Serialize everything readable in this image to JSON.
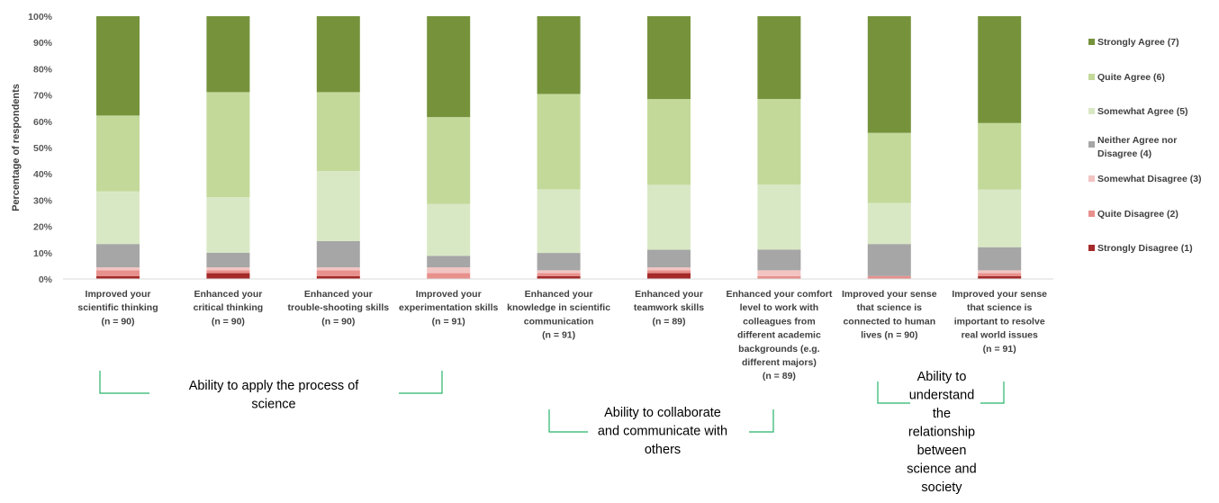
{
  "chart_data": {
    "type": "bar",
    "stacked": true,
    "percent": true,
    "ylabel": "Percentage of respondents",
    "ylim": [
      0,
      100
    ],
    "yticks": [
      "0%",
      "10%",
      "20%",
      "30%",
      "40%",
      "50%",
      "60%",
      "70%",
      "80%",
      "90%",
      "100%"
    ],
    "categories": [
      [
        "Improved your",
        "scientific thinking",
        "(n = 90)"
      ],
      [
        "Enhanced your",
        "critical thinking",
        "(n = 90)"
      ],
      [
        "Enhanced your",
        "trouble-shooting skills",
        "(n = 90)"
      ],
      [
        "Improved your",
        "experimentation skills",
        "(n = 91)"
      ],
      [
        "Enhanced your",
        "knowledge in scientific",
        "communication",
        "(n = 91)"
      ],
      [
        "Enhanced your",
        "teamwork skills",
        "(n = 89)"
      ],
      [
        "Enhanced your comfort",
        "level to work with",
        "colleagues from",
        "different academic",
        "backgrounds (e.g.",
        "different majors)",
        "(n = 89)"
      ],
      [
        "Improved your sense",
        "that science is",
        "connected to human",
        "lives (n = 90)"
      ],
      [
        "Improved your sense",
        "that science is",
        "important to resolve",
        "real world issues",
        "(n = 91)"
      ]
    ],
    "series": [
      {
        "name": "Strongly Disagree (1)",
        "color": "#a52a2a",
        "values": [
          1.1,
          2.2,
          1.1,
          0.0,
          1.1,
          2.2,
          0.0,
          0.0,
          1.1
        ]
      },
      {
        "name": "Quite Disagree (2)",
        "color": "#e8908c",
        "values": [
          2.2,
          1.1,
          2.2,
          2.2,
          1.1,
          1.1,
          1.1,
          1.1,
          1.1
        ]
      },
      {
        "name": "Somewhat Disagree (3)",
        "color": "#f2c4c2",
        "values": [
          1.1,
          1.1,
          1.1,
          2.2,
          1.1,
          1.1,
          2.2,
          0.0,
          1.1
        ]
      },
      {
        "name": "Neither Agree nor Disagree (4)",
        "color": "#a6a6a6",
        "values": [
          8.9,
          5.6,
          10.0,
          4.4,
          6.6,
          6.7,
          7.9,
          12.2,
          8.8
        ]
      },
      {
        "name": "Somewhat Agree (5)",
        "color": "#d9e8c4",
        "values": [
          20.0,
          21.1,
          26.7,
          19.8,
          24.2,
          24.7,
          24.7,
          15.6,
          22.0
        ]
      },
      {
        "name": "Quite Agree (6)",
        "color": "#c3d99a",
        "values": [
          28.9,
          40.0,
          30.0,
          33.0,
          36.3,
          32.6,
          32.6,
          26.7,
          25.3
        ]
      },
      {
        "name": "Strongly Agree (7)",
        "color": "#76933c",
        "values": [
          37.8,
          28.9,
          28.9,
          38.4,
          29.6,
          31.5,
          31.5,
          44.4,
          40.7
        ]
      }
    ],
    "legend_order": [
      "Strongly Agree (7)",
      "Quite Agree (6)",
      "Somewhat Agree (5)",
      "Neither Agree nor Disagree (4)",
      "Somewhat Disagree (3)",
      "Quite Disagree (2)",
      "Strongly Disagree (1)"
    ],
    "legend_position": "right",
    "groups": [
      {
        "label_lines": [
          "Ability to apply the process of",
          "science"
        ],
        "categories": [
          0,
          1,
          2,
          3
        ]
      },
      {
        "label_lines": [
          "Ability to collaborate",
          "and communicate with",
          "others"
        ],
        "categories": [
          4,
          5,
          6
        ]
      },
      {
        "label_lines": [
          "Ability to",
          "understand",
          "the",
          "relationship",
          "between",
          "science and",
          "society"
        ],
        "categories": [
          7,
          8
        ]
      }
    ]
  }
}
